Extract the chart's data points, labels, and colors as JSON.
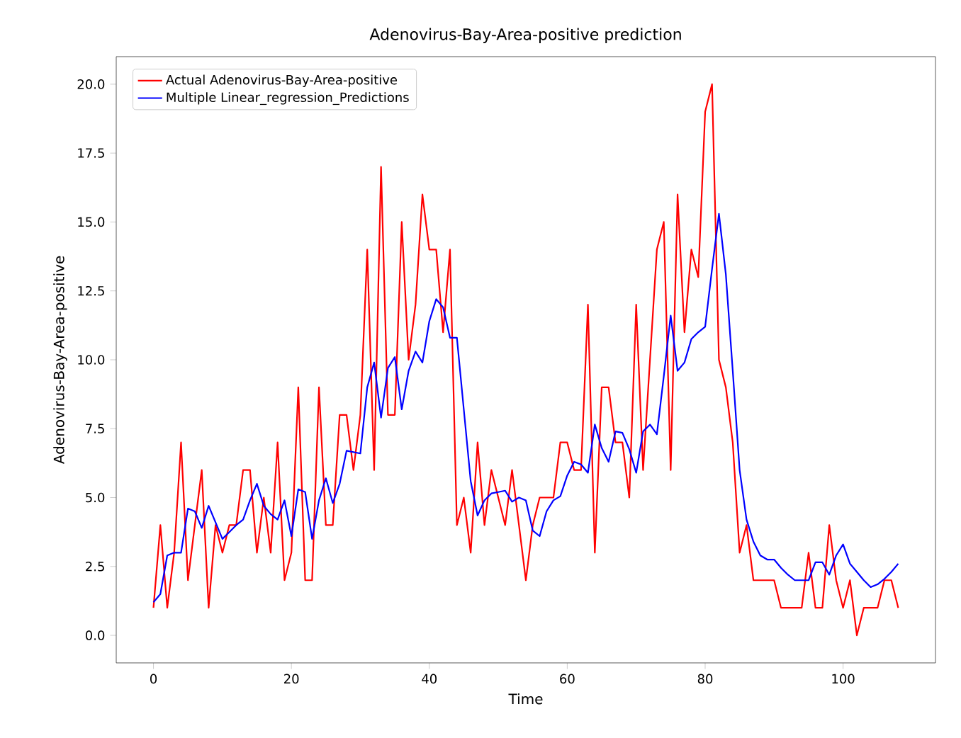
{
  "chart_data": {
    "type": "line",
    "title": "Adenovirus-Bay-Area-positive prediction",
    "xlabel": "Time",
    "ylabel": "Adenovirus-Bay-Area-positive",
    "x": [
      0,
      1,
      2,
      3,
      4,
      5,
      6,
      7,
      8,
      9,
      10,
      11,
      12,
      13,
      14,
      15,
      16,
      17,
      18,
      19,
      20,
      21,
      22,
      23,
      24,
      25,
      26,
      27,
      28,
      29,
      30,
      31,
      32,
      33,
      34,
      35,
      36,
      37,
      38,
      39,
      40,
      41,
      42,
      43,
      44,
      45,
      46,
      47,
      48,
      49,
      50,
      51,
      52,
      53,
      54,
      55,
      56,
      57,
      58,
      59,
      60,
      61,
      62,
      63,
      64,
      65,
      66,
      67,
      68,
      69,
      70,
      71,
      72,
      73,
      74,
      75,
      76,
      77,
      78,
      79,
      80,
      81,
      82,
      83,
      84,
      85,
      86,
      87,
      88,
      89,
      90,
      91,
      92,
      93,
      94,
      95,
      96,
      97,
      98,
      99,
      100,
      101,
      102,
      103,
      104,
      105,
      106,
      107,
      108
    ],
    "series": [
      {
        "name": "Actual Adenovirus-Bay-Area-positive",
        "color": "#ff0000",
        "values": [
          1,
          4,
          1,
          3,
          7,
          2,
          4,
          6,
          1,
          4,
          3,
          4,
          4,
          6,
          6,
          3,
          5,
          3,
          7,
          2,
          3,
          9,
          2,
          2,
          9,
          4,
          4,
          8,
          8,
          6,
          8,
          14,
          6,
          17,
          8,
          8,
          15,
          10,
          12,
          16,
          14,
          14,
          11,
          14,
          4,
          5,
          3,
          7,
          4,
          6,
          5,
          4,
          6,
          4,
          2,
          4,
          5,
          5,
          5,
          7,
          7,
          6,
          6,
          12,
          3,
          9,
          9,
          7,
          7,
          5,
          12,
          6,
          10,
          14,
          15,
          6,
          16,
          11,
          14,
          13,
          19,
          20,
          10,
          9,
          7,
          3,
          4,
          2,
          2,
          2,
          2,
          1,
          1,
          1,
          1,
          3,
          1,
          1,
          4,
          2,
          1,
          2,
          0,
          1,
          1,
          1,
          2,
          2,
          1
        ]
      },
      {
        "name": "Multiple Linear_regression_Predictions",
        "color": "#0000ff",
        "values": [
          1.2,
          1.5,
          2.9,
          3.0,
          3.0,
          4.6,
          4.5,
          3.9,
          4.7,
          4.1,
          3.5,
          3.75,
          4.0,
          4.2,
          4.9,
          5.5,
          4.7,
          4.4,
          4.2,
          4.9,
          3.6,
          5.3,
          5.2,
          3.5,
          4.9,
          5.7,
          4.8,
          5.5,
          6.7,
          6.65,
          6.6,
          9.0,
          9.9,
          7.9,
          9.7,
          10.1,
          8.2,
          9.6,
          10.3,
          9.9,
          11.4,
          12.2,
          11.9,
          10.8,
          10.8,
          8.2,
          5.6,
          4.35,
          4.9,
          5.15,
          5.2,
          5.25,
          4.85,
          5.0,
          4.9,
          3.8,
          3.6,
          4.5,
          4.9,
          5.05,
          5.8,
          6.3,
          6.2,
          5.9,
          7.65,
          6.8,
          6.3,
          7.4,
          7.35,
          6.75,
          5.9,
          7.4,
          7.65,
          7.3,
          9.4,
          11.6,
          9.6,
          9.9,
          10.75,
          11.0,
          11.2,
          13.3,
          15.3,
          13.1,
          9.6,
          6.0,
          4.2,
          3.4,
          2.9,
          2.75,
          2.75,
          2.45,
          2.2,
          2.0,
          2.0,
          2.0,
          2.65,
          2.65,
          2.2,
          2.9,
          3.3,
          2.6,
          2.3,
          2.0,
          1.75,
          1.85,
          2.05,
          2.3,
          2.6
        ]
      }
    ],
    "xlim": [
      -5.4,
      113.4
    ],
    "ylim": [
      -1,
      21
    ],
    "xticks": [
      0,
      20,
      40,
      60,
      80,
      100
    ],
    "yticks": [
      {
        "value": 0,
        "label": "0.0"
      },
      {
        "value": 2.5,
        "label": "2.5"
      },
      {
        "value": 5,
        "label": "5.0"
      },
      {
        "value": 7.5,
        "label": "7.5"
      },
      {
        "value": 10,
        "label": "10.0"
      },
      {
        "value": 12.5,
        "label": "12.5"
      },
      {
        "value": 15,
        "label": "15.0"
      },
      {
        "value": 17.5,
        "label": "17.5"
      },
      {
        "value": 20,
        "label": "20.0"
      }
    ],
    "legend": "top left"
  }
}
